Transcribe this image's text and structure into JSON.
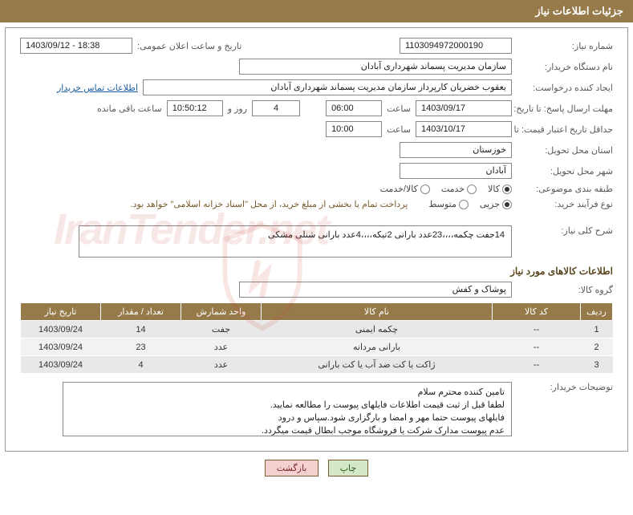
{
  "header": {
    "title": "جزئیات اطلاعات نیاز"
  },
  "fields": {
    "need_no_label": "شماره نیاز:",
    "need_no": "1103094972000190",
    "announce_date_label": "تاریخ و ساعت اعلان عمومی:",
    "announce_date": "1403/09/12 - 18:38",
    "buyer_org_label": "نام دستگاه خریدار:",
    "buyer_org": "سازمان مدیریت پسماند شهرداری آبادان",
    "requester_label": "ایجاد کننده درخواست:",
    "requester": "یعقوب خضریان کارپرداز سازمان مدیریت پسماند شهرداری آبادان",
    "contact_link": "اطلاعات تماس خریدار",
    "deadline_label": "مهلت ارسال پاسخ: تا تاریخ:",
    "deadline_date": "1403/09/17",
    "time_label": "ساعت",
    "deadline_time": "06:00",
    "days_left": "4",
    "days_word": "روز و",
    "countdown": "10:50:12",
    "remaining": "ساعت باقی مانده",
    "validity_label": "حداقل تاریخ اعتبار قیمت: تا تاریخ:",
    "validity_date": "1403/10/17",
    "validity_time": "10:00",
    "province_label": "استان محل تحویل:",
    "province": "خوزستان",
    "city_label": "شهر محل تحویل:",
    "city": "آبادان",
    "category_label": "طبقه بندی موضوعی:",
    "cat_kala": "کالا",
    "cat_khadamat": "خدمت",
    "cat_kalakhadamat": "کالا/خدمت",
    "process_label": "نوع فرآیند خرید:",
    "proc_small": "جزیی",
    "proc_medium": "متوسط",
    "process_note": "پرداخت تمام یا بخشی از مبلغ خرید، از محل \"اسناد خزانه اسلامی\" خواهد بود.",
    "summary_label": "شرح کلی نیاز:",
    "summary": "14جفت چکمه،،،،23عدد بارانی 2تیکه،،،،4عدد بارانی شنلی مشکی",
    "goods_section": "اطلاعات کالاهای مورد نیاز",
    "group_label": "گروه کالا:",
    "group": "پوشاک و کفش",
    "buyer_notes_label": "توضیحات خریدار:",
    "notes_l1": "تامین کننده محترم سلام",
    "notes_l2": "لطفا قبل از ثبت قیمت اطلاعات فایلهای پیوست را مطالعه نمایید.",
    "notes_l3": "فایلهای پیوست حتما مهر و امضا و بارگزاری شود.سپاس و درود",
    "notes_l4": "عدم پیوست مدارک شرکت یا فروشگاه موجب ابطال قیمت میگردد."
  },
  "table": {
    "headers": {
      "row": "ردیف",
      "code": "کد کالا",
      "name": "نام کالا",
      "unit": "واحد شمارش",
      "qty": "تعداد / مقدار",
      "date": "تاریخ نیاز"
    },
    "rows": [
      {
        "n": "1",
        "code": "--",
        "name": "چکمه ایمنی",
        "unit": "جفت",
        "qty": "14",
        "date": "1403/09/24"
      },
      {
        "n": "2",
        "code": "--",
        "name": "بارانی مردانه",
        "unit": "عدد",
        "qty": "23",
        "date": "1403/09/24"
      },
      {
        "n": "3",
        "code": "--",
        "name": "ژاکت یا کت ضد آب یا کت بارانی",
        "unit": "عدد",
        "qty": "4",
        "date": "1403/09/24"
      }
    ]
  },
  "buttons": {
    "print": "چاپ",
    "back": "بازگشت"
  },
  "watermark": "IranTender.net",
  "colors": {
    "header_bg": "#967a4a",
    "frame_border": "#999999",
    "link": "#1a5fa0"
  }
}
